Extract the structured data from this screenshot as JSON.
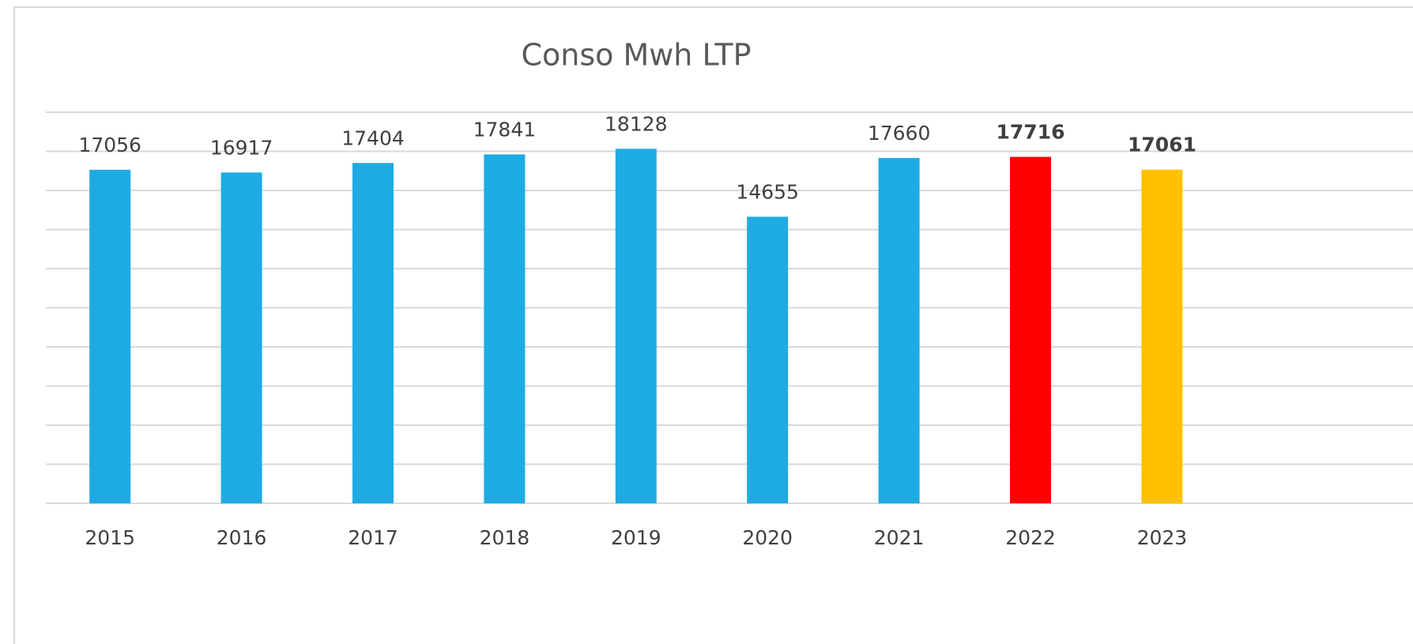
{
  "chart_data": {
    "type": "bar",
    "title": "Conso Mwh LTP",
    "categories": [
      "2015",
      "2016",
      "2017",
      "2018",
      "2019",
      "2020",
      "2021",
      "2022",
      "2023"
    ],
    "values": [
      17056,
      16917,
      17404,
      17841,
      18128,
      14655,
      17660,
      17716,
      17061
    ],
    "colors": [
      "#1eabe3",
      "#1eabe3",
      "#1eabe3",
      "#1eabe3",
      "#1eabe3",
      "#1eabe3",
      "#1eabe3",
      "#ff0000",
      "#ffc000"
    ],
    "value_label_bold": [
      false,
      false,
      false,
      false,
      false,
      false,
      false,
      true,
      true
    ],
    "ylim": [
      0,
      20000
    ],
    "yticks": [
      0,
      2000,
      4000,
      6000,
      8000,
      10000,
      12000,
      14000,
      16000,
      18000,
      20000
    ],
    "grid": true
  }
}
